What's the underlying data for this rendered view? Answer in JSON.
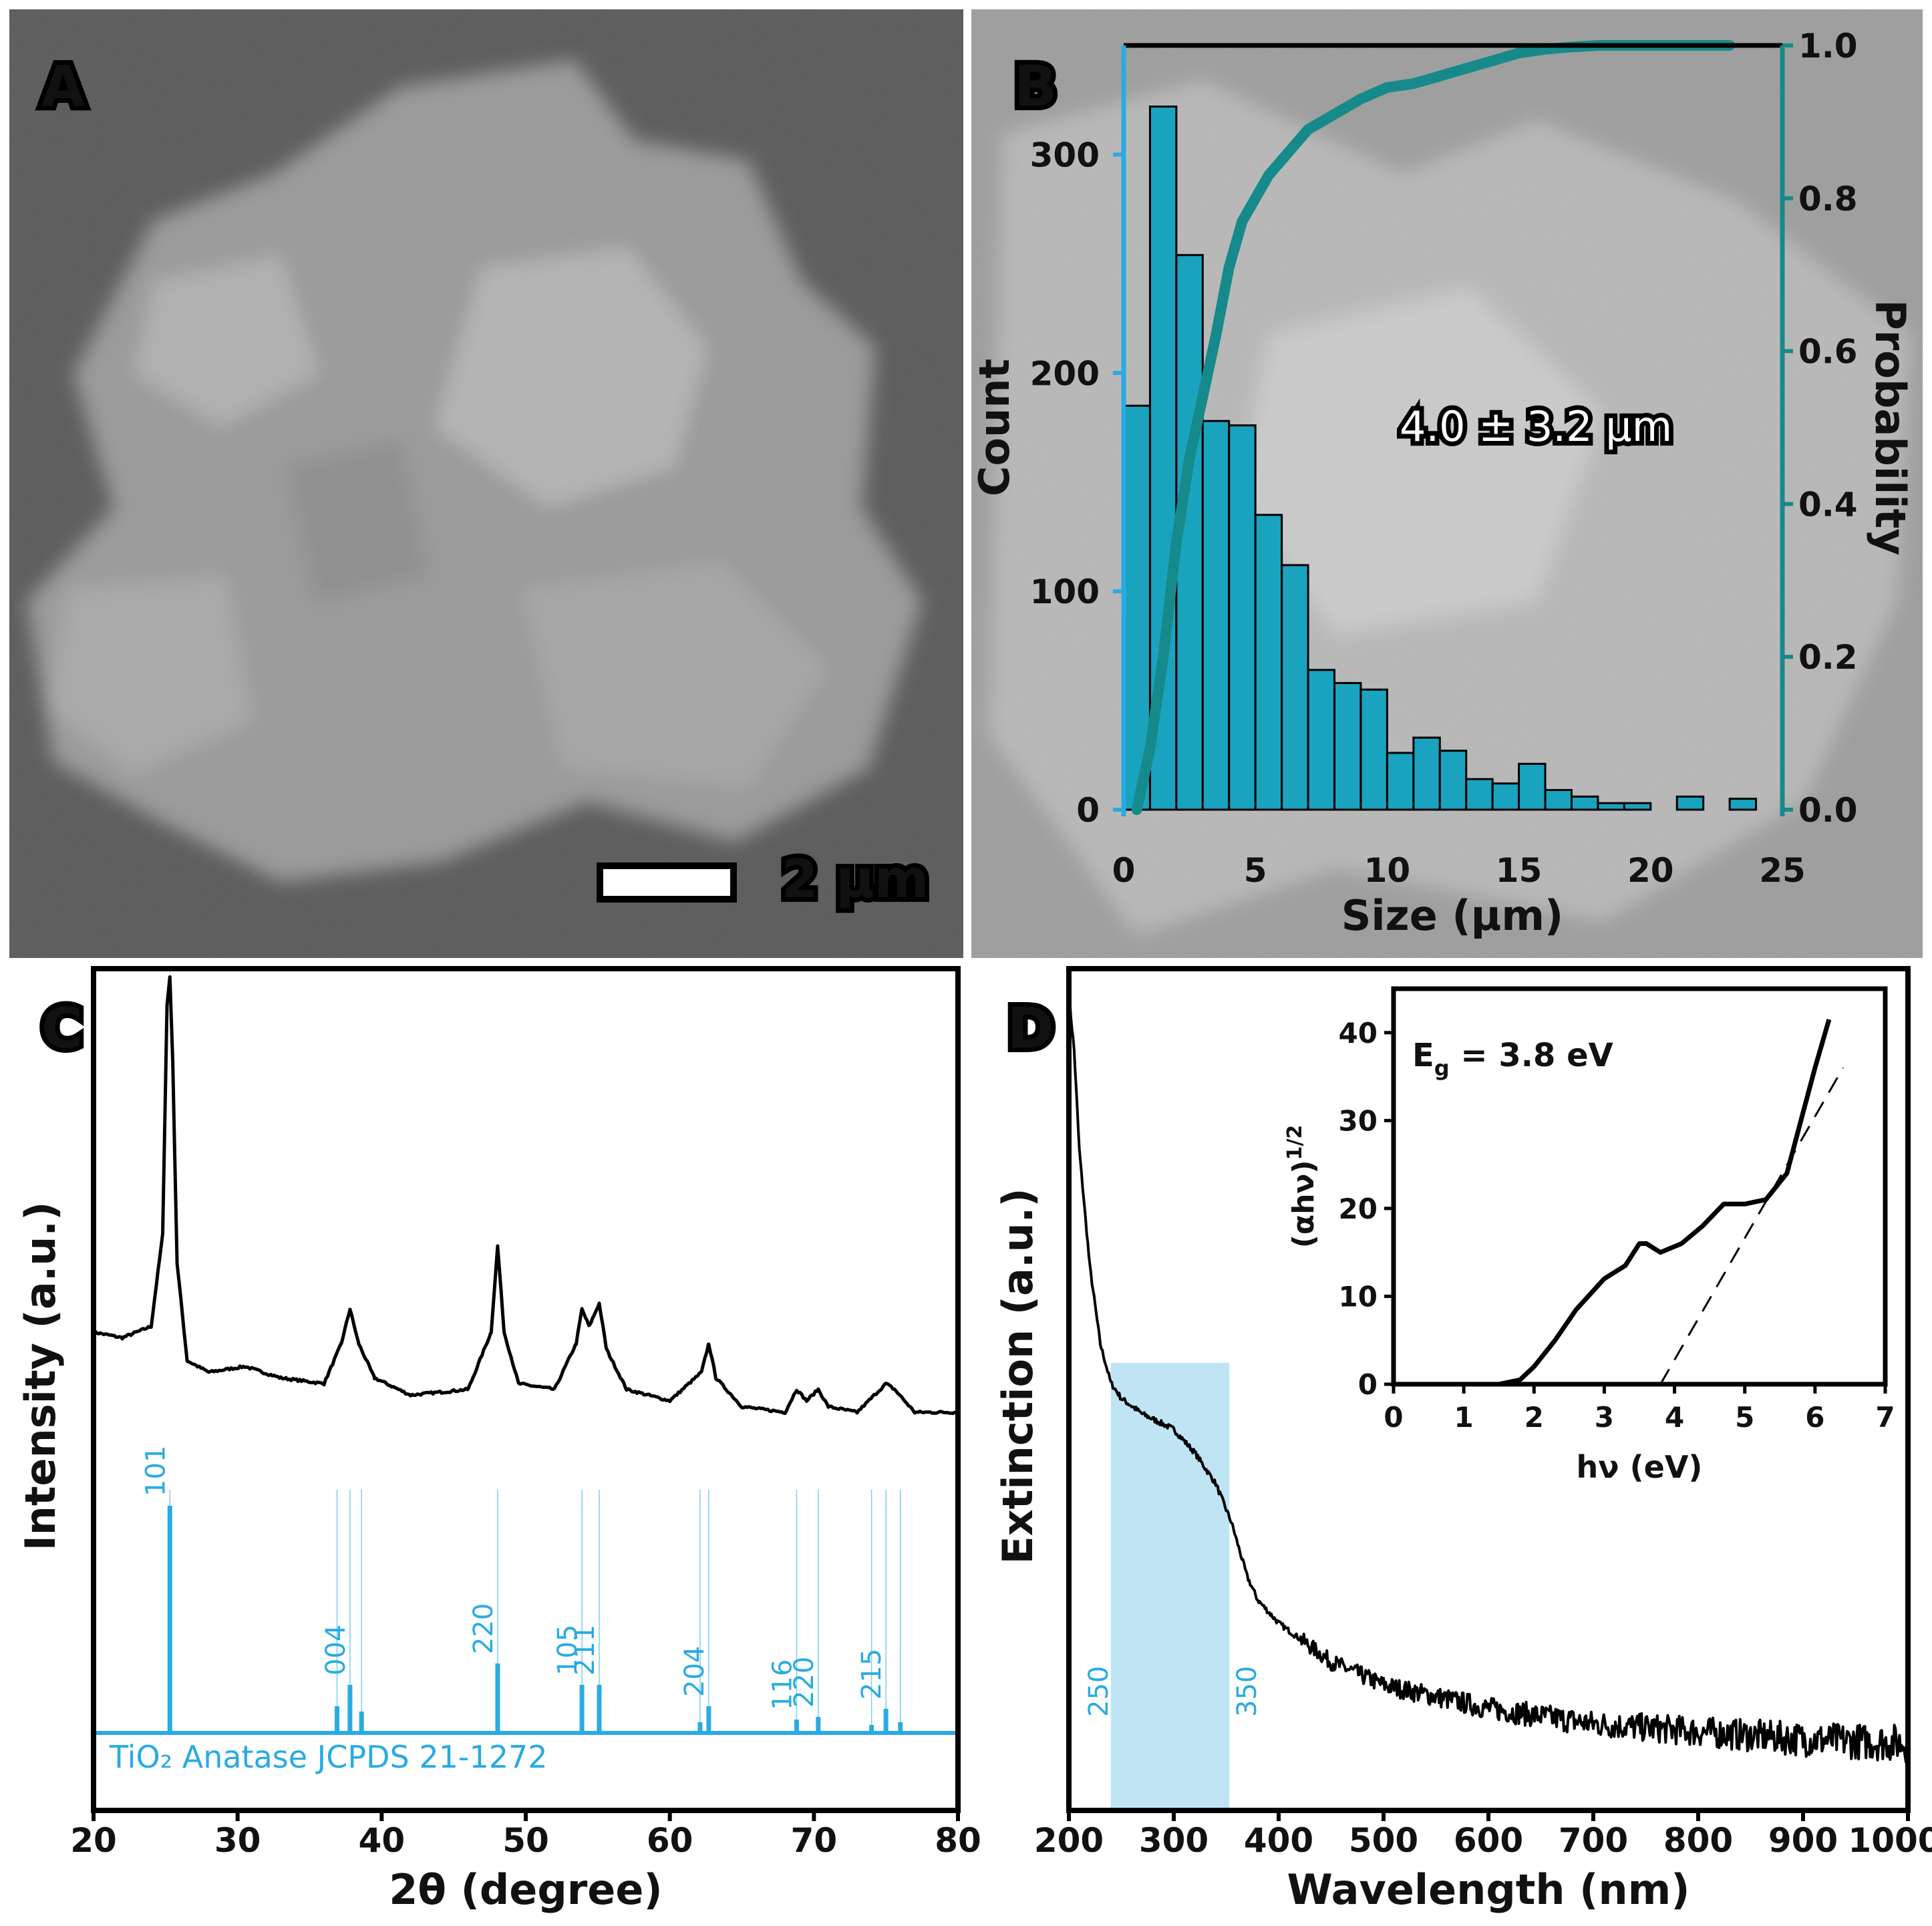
{
  "panels": {
    "A": {
      "letter": "A",
      "scale_label": "2 μm"
    },
    "B": {
      "letter": "B",
      "annotation": "4.0 ± 3.2 μm"
    },
    "C": {
      "letter": "C",
      "reference_label": "TiO₂ Anatase JCPDS 21-1272"
    },
    "D": {
      "letter": "D",
      "band_labels": [
        "250",
        "350"
      ]
    }
  },
  "colors": {
    "bar_fill": "#1aa3bf",
    "cdf_line": "#168a8a",
    "reference": "#29abe2",
    "band": "#bfe5f5",
    "trace": "#000000"
  },
  "chart_data": [
    {
      "panel": "B",
      "type": "bar",
      "xlabel": "Size (μm)",
      "ylabel": "Count",
      "y2label": "Probability",
      "xlim": [
        0,
        25
      ],
      "ylim": [
        0,
        350
      ],
      "y2lim": [
        0,
        1.0
      ],
      "xticks": [
        "0",
        "5",
        "10",
        "15",
        "20",
        "25"
      ],
      "yticks": [
        "0",
        "100",
        "200",
        "300"
      ],
      "y2ticks": [
        "0.0",
        "0.2",
        "0.4",
        "0.6",
        "0.8",
        "1.0"
      ],
      "bin_width": 1,
      "bin_starts": [
        0,
        1,
        2,
        3,
        4,
        5,
        6,
        7,
        8,
        9,
        10,
        11,
        12,
        13,
        14,
        15,
        16,
        17,
        18,
        19,
        20,
        21,
        22,
        23
      ],
      "counts": [
        185,
        322,
        254,
        178,
        176,
        135,
        112,
        64,
        58,
        55,
        26,
        33,
        27,
        14,
        12,
        21,
        9,
        6,
        3,
        3,
        0,
        6,
        0,
        5
      ],
      "cdf": {
        "x": [
          0.5,
          1,
          1.5,
          2,
          2.5,
          3,
          3.5,
          4,
          4.5,
          5,
          5.5,
          6,
          6.5,
          7,
          7.5,
          8,
          9,
          10,
          11,
          12,
          13,
          14,
          15,
          16,
          17,
          18,
          20,
          23
        ],
        "y": [
          0.0,
          0.08,
          0.2,
          0.35,
          0.46,
          0.54,
          0.62,
          0.71,
          0.77,
          0.8,
          0.83,
          0.85,
          0.87,
          0.89,
          0.9,
          0.91,
          0.93,
          0.945,
          0.95,
          0.96,
          0.97,
          0.98,
          0.99,
          0.995,
          0.998,
          1.0,
          1.0,
          1.0
        ]
      }
    },
    {
      "panel": "C",
      "type": "line",
      "xlabel": "2θ (degree)",
      "ylabel": "Intensity (a.u.)",
      "xlim": [
        20,
        80
      ],
      "xticks": [
        "20",
        "30",
        "40",
        "50",
        "60",
        "70",
        "80"
      ],
      "reflections": [
        {
          "x": 25.3,
          "label": "101",
          "h": 0.85
        },
        {
          "x": 36.9,
          "label": "",
          "h": 0.1
        },
        {
          "x": 37.8,
          "label": "004",
          "h": 0.18
        },
        {
          "x": 38.6,
          "label": "",
          "h": 0.08
        },
        {
          "x": 48.05,
          "label": "220",
          "h": 0.26
        },
        {
          "x": 53.9,
          "label": "105",
          "h": 0.18
        },
        {
          "x": 55.1,
          "label": "211",
          "h": 0.18
        },
        {
          "x": 62.1,
          "label": "",
          "h": 0.04
        },
        {
          "x": 62.7,
          "label": "204",
          "h": 0.1
        },
        {
          "x": 68.8,
          "label": "116",
          "h": 0.05
        },
        {
          "x": 70.3,
          "label": "220",
          "h": 0.06
        },
        {
          "x": 74.0,
          "label": "",
          "h": 0.03
        },
        {
          "x": 75.0,
          "label": "215",
          "h": 0.09
        },
        {
          "x": 76.0,
          "label": "",
          "h": 0.04
        }
      ],
      "trace": {
        "x": [
          20,
          22,
          24,
          24.8,
          25.1,
          25.3,
          25.5,
          25.8,
          26.5,
          28,
          30.5,
          33,
          36,
          37.2,
          37.8,
          38.4,
          39.5,
          42,
          46,
          47.6,
          48.05,
          48.5,
          49.5,
          52,
          53.5,
          53.9,
          54.4,
          55.1,
          55.6,
          57,
          60,
          62.2,
          62.7,
          63.2,
          65,
          68,
          68.8,
          69.5,
          70.3,
          71,
          73,
          75,
          75.6,
          77,
          80
        ],
        "y": [
          0.38,
          0.37,
          0.39,
          0.55,
          0.95,
          1.0,
          0.85,
          0.5,
          0.33,
          0.31,
          0.32,
          0.3,
          0.29,
          0.36,
          0.42,
          0.36,
          0.3,
          0.27,
          0.28,
          0.38,
          0.53,
          0.38,
          0.29,
          0.28,
          0.36,
          0.42,
          0.39,
          0.43,
          0.35,
          0.28,
          0.26,
          0.31,
          0.36,
          0.3,
          0.25,
          0.24,
          0.28,
          0.26,
          0.28,
          0.25,
          0.24,
          0.29,
          0.28,
          0.24,
          0.24
        ]
      }
    },
    {
      "panel": "D",
      "type": "line",
      "xlabel": "Wavelength (nm)",
      "ylabel": "Extinction (a.u.)",
      "xlim": [
        200,
        1000
      ],
      "xticks": [
        "200",
        "300",
        "400",
        "500",
        "600",
        "700",
        "800",
        "900",
        "1000"
      ],
      "highlight_range": [
        240,
        353
      ],
      "trace": {
        "x": [
          200,
          205,
          210,
          220,
          230,
          240,
          250,
          270,
          300,
          320,
          340,
          355,
          370,
          380,
          400,
          450,
          500,
          600,
          700,
          800,
          900,
          1000
        ],
        "y": [
          1.0,
          0.93,
          0.8,
          0.65,
          0.55,
          0.5,
          0.48,
          0.46,
          0.44,
          0.41,
          0.37,
          0.32,
          0.25,
          0.22,
          0.19,
          0.14,
          0.11,
          0.08,
          0.06,
          0.05,
          0.04,
          0.035
        ]
      }
    },
    {
      "panel": "D-inset",
      "type": "line",
      "xlabel": "hν (eV)",
      "ylabel": "(αhν)",
      "ylabel_superscript": "1/2",
      "annotation": "E",
      "annotation_sub": "g",
      "annotation_value": " = 3.8 eV",
      "xlim": [
        0,
        7
      ],
      "ylim": [
        0,
        45
      ],
      "xticks": [
        "0",
        "1",
        "2",
        "3",
        "4",
        "5",
        "6",
        "7"
      ],
      "yticks": [
        "0",
        "10",
        "20",
        "30",
        "40"
      ],
      "trace": {
        "x": [
          1.5,
          1.8,
          2.0,
          2.3,
          2.6,
          3.0,
          3.3,
          3.5,
          3.6,
          3.8,
          4.1,
          4.4,
          4.7,
          5.0,
          5.3,
          5.6,
          5.8,
          6.0,
          6.2
        ],
        "y": [
          0,
          0.5,
          2,
          5,
          8.5,
          12,
          13.5,
          16,
          16,
          15,
          16,
          18,
          20.5,
          20.5,
          21,
          24,
          30,
          36,
          41.5
        ]
      },
      "fit_line": {
        "x": [
          3.8,
          6.4
        ],
        "y": [
          0,
          36
        ]
      }
    }
  ]
}
